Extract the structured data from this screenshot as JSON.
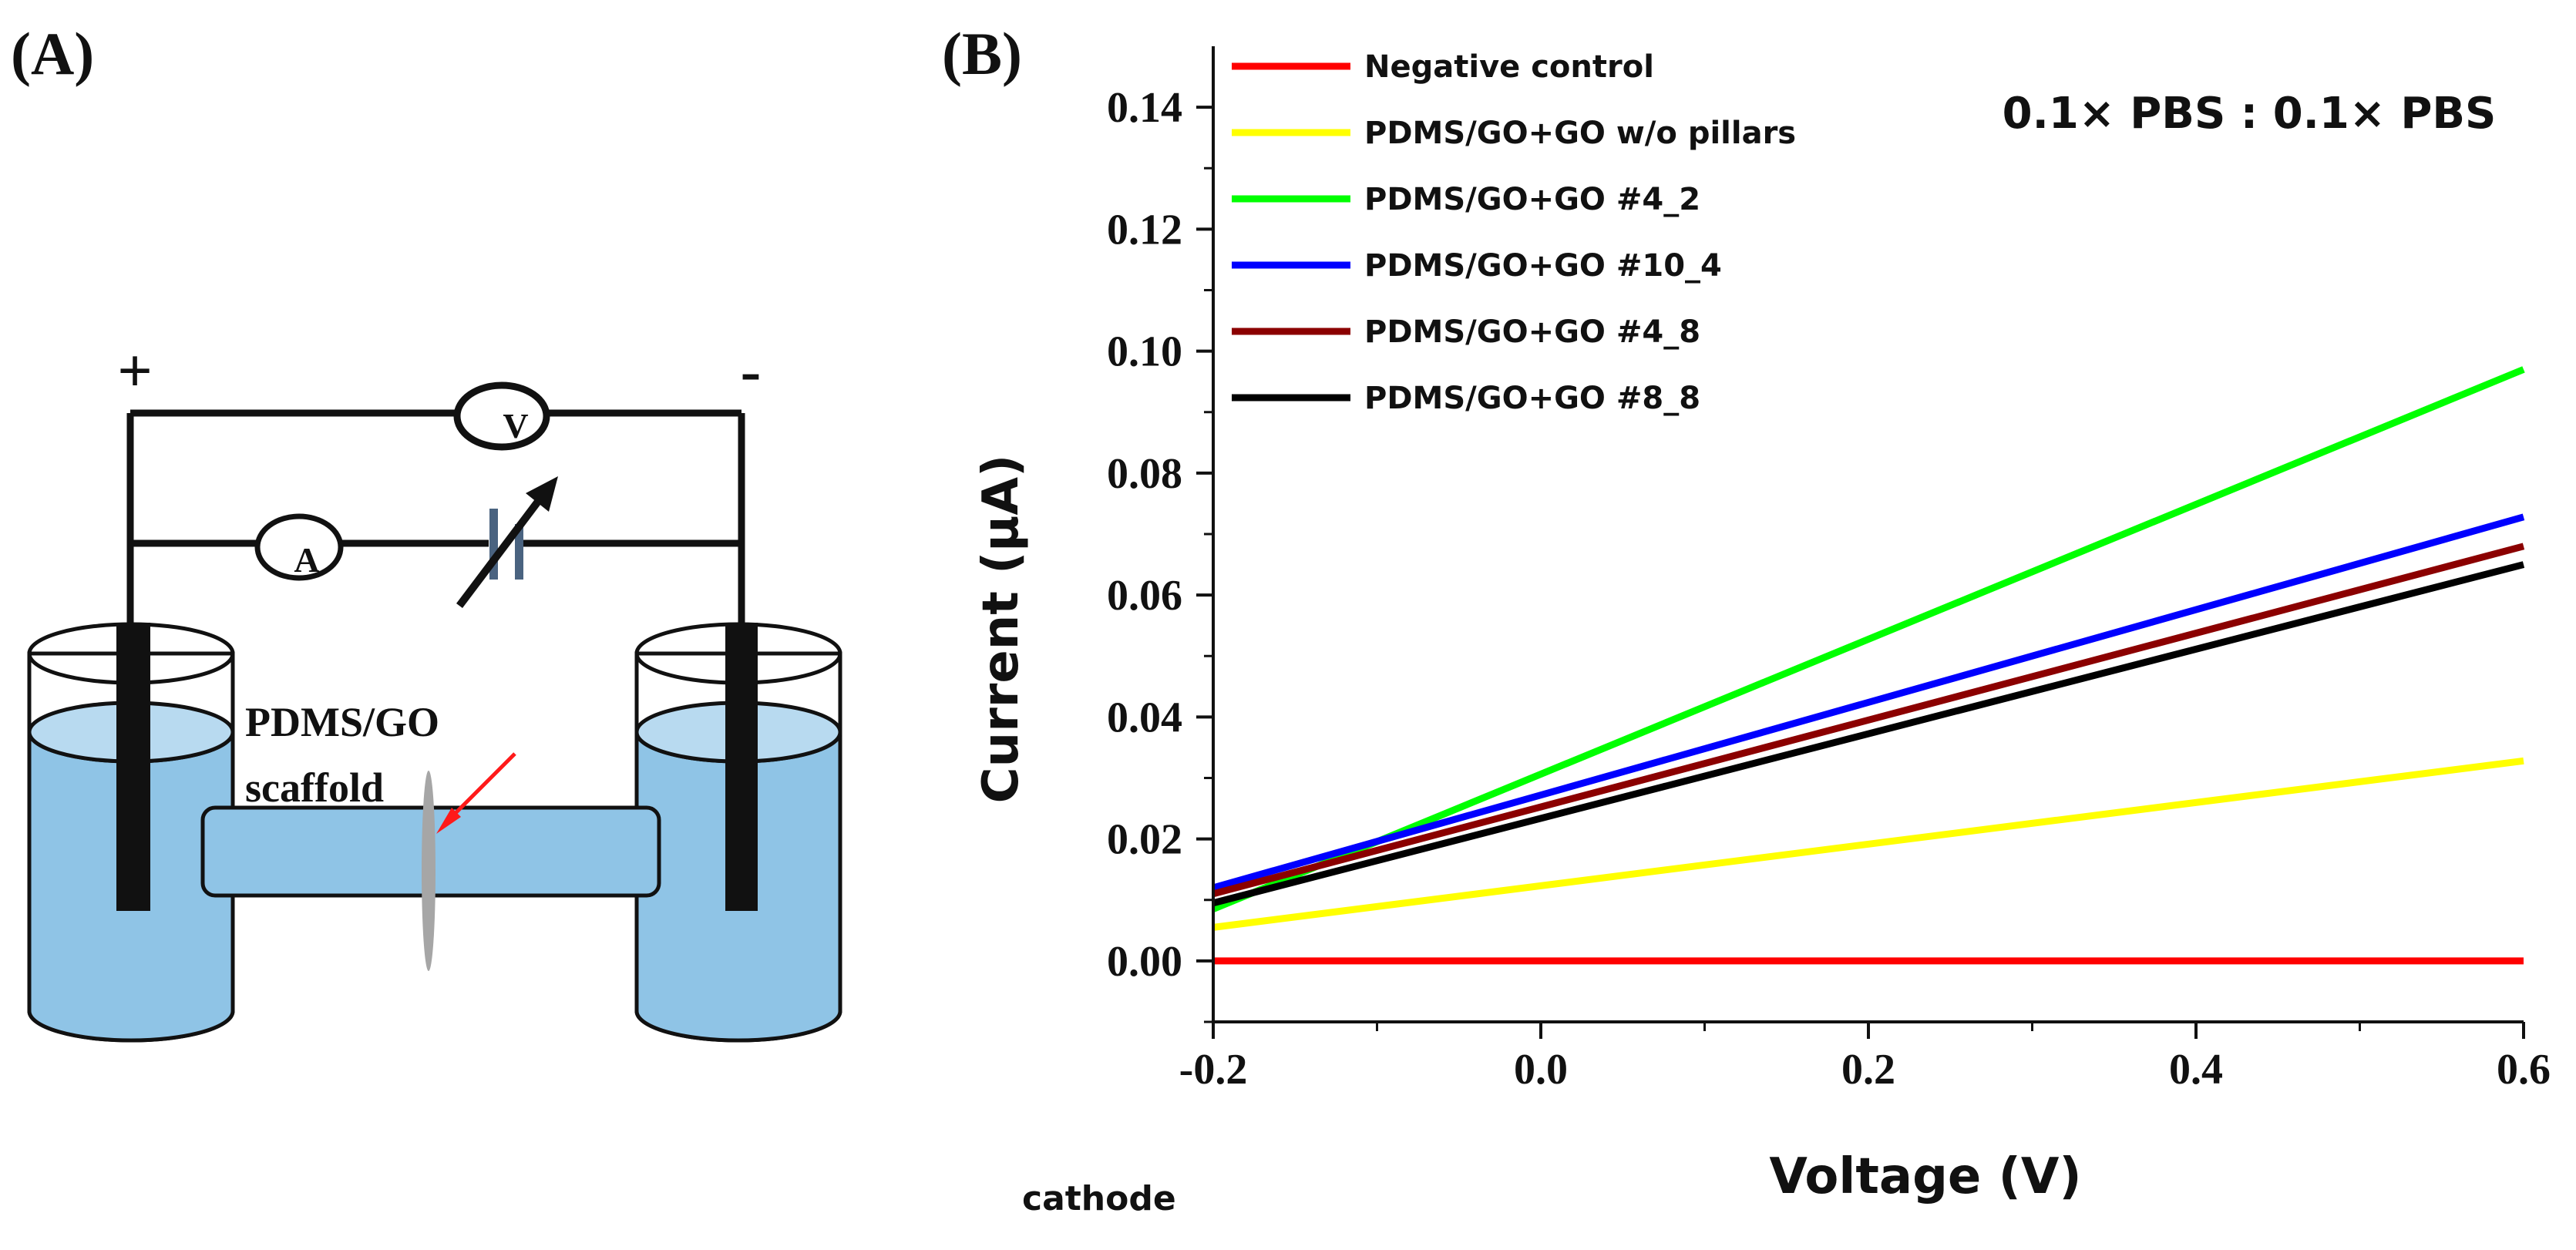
{
  "panel_a": {
    "label": "(A)",
    "plus_sign": "+",
    "minus_sign": "-",
    "voltmeter_letter": "V",
    "ammeter_letter": "A",
    "scaffold_line1": "PDMS/GO",
    "scaffold_line2": "scaffold",
    "cathode_label": "cathode",
    "colors": {
      "water": "#8fc4e6",
      "water_top": "#b8daf0",
      "electrode": "#111111",
      "arrow": "#ff1a1a",
      "membrane": "#a6a6a6",
      "battery": "#4a6380"
    }
  },
  "panel_b": {
    "label": "(B)",
    "annotation": "0.1× PBS : 0.1× PBS"
  },
  "chart_data": {
    "type": "line",
    "title": "",
    "xlabel": "Voltage (V)",
    "ylabel": "Current (μA)",
    "xlim": [
      -0.2,
      0.6
    ],
    "ylim": [
      -0.01,
      0.15
    ],
    "xticks": [
      -0.2,
      0.0,
      0.2,
      0.4,
      0.6
    ],
    "xtick_labels": [
      "-0.2",
      "0.0",
      "0.2",
      "0.4",
      "0.6"
    ],
    "yticks": [
      0.0,
      0.02,
      0.04,
      0.06,
      0.08,
      0.1,
      0.12,
      0.14
    ],
    "ytick_labels": [
      "0.00",
      "0.02",
      "0.04",
      "0.06",
      "0.08",
      "0.10",
      "0.12",
      "0.14"
    ],
    "legend_position": "top-left",
    "series": [
      {
        "name": "Negative control",
        "color": "#ff0000",
        "x": [
          -0.2,
          0.6
        ],
        "values": [
          0.0,
          0.0
        ]
      },
      {
        "name": "PDMS/GO+GO w/o pillars",
        "color": "#ffff00",
        "x": [
          -0.2,
          0.6
        ],
        "values": [
          0.0055,
          0.0328
        ]
      },
      {
        "name": "PDMS/GO+GO #4_2",
        "color": "#00ff00",
        "x": [
          -0.2,
          0.6
        ],
        "values": [
          0.0085,
          0.097
        ]
      },
      {
        "name": "PDMS/GO+GO #10_4",
        "color": "#0000ff",
        "x": [
          -0.2,
          0.6
        ],
        "values": [
          0.012,
          0.0728
        ]
      },
      {
        "name": "PDMS/GO+GO #4_8",
        "color": "#8b0000",
        "x": [
          -0.2,
          0.6
        ],
        "values": [
          0.011,
          0.068
        ]
      },
      {
        "name": "PDMS/GO+GO #8_8",
        "color": "#000000",
        "x": [
          -0.2,
          0.6
        ],
        "values": [
          0.0095,
          0.065
        ]
      }
    ]
  }
}
